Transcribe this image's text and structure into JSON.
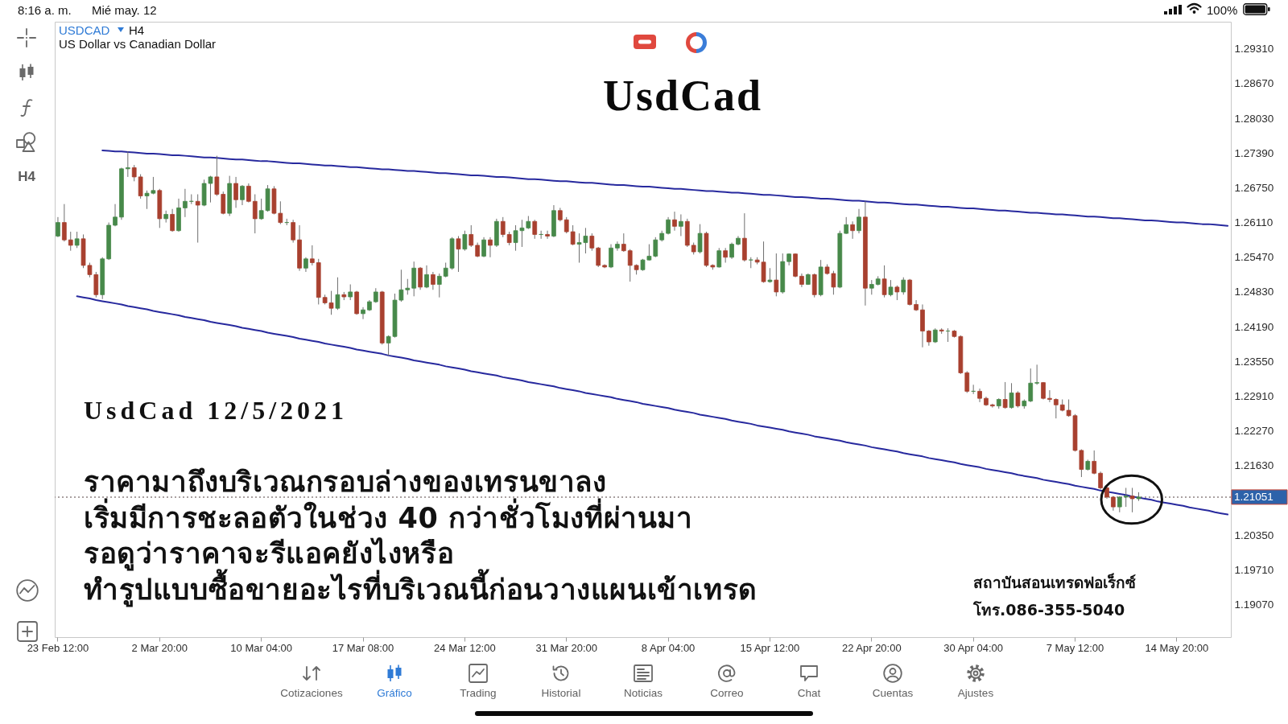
{
  "chart_data": {
    "type": "candlestick",
    "title": "UsdCad",
    "annotations": [
      "8:16 a. m.",
      "Mié may. 12",
      "100%",
      "H4",
      "USDCAD",
      "H4",
      "US Dollar vs Canadian Dollar",
      "UsdCad 12/5/2021",
      "ราคามาถึงบริเวณกรอบล่างของเทรนขาลง",
      "เริ่มมีการชะลอตัวในช่วง 40 กว่าชั่วโมงที่ผ่านมา",
      "รอดูว่าราคาจะรีแอคยังไงหรือ",
      "ทำรูปแบบซื้อขายอะไรที่บริเวณนี้ก่อนวางแผนเข้าเทรด",
      "สถาบันสอนเทรดฟอเร็กซ์",
      "โทร.086-355-5040",
      "Cotizaciones",
      "Gráfico",
      "Trading",
      "Historial",
      "Noticias",
      "Correo",
      "Chat",
      "Cuentas",
      "Ajustes"
    ],
    "categories": [
      "23 Feb 12:00",
      null,
      null,
      null,
      null,
      null,
      null,
      null,
      null,
      null,
      null,
      null,
      null,
      null,
      null,
      null,
      "2 Mar 20:00",
      null,
      null,
      null,
      null,
      null,
      null,
      null,
      null,
      null,
      null,
      null,
      null,
      null,
      null,
      null,
      "10 Mar 04:00",
      null,
      null,
      null,
      null,
      null,
      null,
      null,
      null,
      null,
      null,
      null,
      null,
      null,
      null,
      null,
      "17 Mar 08:00",
      null,
      null,
      null,
      null,
      null,
      null,
      null,
      null,
      null,
      null,
      null,
      null,
      null,
      null,
      null,
      "24 Mar 12:00",
      null,
      null,
      null,
      null,
      null,
      null,
      null,
      null,
      null,
      null,
      null,
      null,
      null,
      null,
      null,
      "31 Mar 20:00",
      null,
      null,
      null,
      null,
      null,
      null,
      null,
      null,
      null,
      null,
      null,
      null,
      null,
      null,
      null,
      "8 Apr 04:00",
      null,
      null,
      null,
      null,
      null,
      null,
      null,
      null,
      null,
      null,
      null,
      null,
      null,
      null,
      null,
      "15 Apr 12:00",
      null,
      null,
      null,
      null,
      null,
      null,
      null,
      null,
      null,
      null,
      null,
      null,
      null,
      null,
      null,
      "22 Apr 20:00",
      null,
      null,
      null,
      null,
      null,
      null,
      null,
      null,
      null,
      null,
      null,
      null,
      null,
      null,
      null,
      "30 Apr 04:00",
      null,
      null,
      null,
      null,
      null,
      null,
      null,
      null,
      null,
      null,
      null,
      null,
      null,
      null,
      null,
      "7 May 12:00",
      null,
      null,
      null,
      null,
      null,
      null,
      null,
      null,
      null,
      null,
      null,
      null,
      null,
      null,
      null,
      "14 May 20:00",
      null,
      null,
      null,
      null,
      null,
      null,
      null,
      null
    ],
    "ohlc": [
      [
        1.2586,
        1.2621,
        1.2584,
        1.2611
      ],
      [
        1.2611,
        1.2645,
        1.2576,
        1.2579
      ],
      [
        1.2579,
        1.2594,
        1.2559,
        1.2569
      ],
      [
        1.2569,
        1.2594,
        1.2564,
        1.2581
      ],
      [
        1.2581,
        1.2589,
        1.2527,
        1.2532
      ],
      [
        1.2532,
        1.2537,
        1.251,
        1.2515
      ],
      [
        1.2515,
        1.252,
        1.2473,
        1.2478
      ],
      [
        1.2478,
        1.2547,
        1.247,
        1.2544
      ],
      [
        1.2544,
        1.2611,
        1.2542,
        1.2606
      ],
      [
        1.2606,
        1.2645,
        1.2604,
        1.2621
      ],
      [
        1.2621,
        1.2712,
        1.2616,
        1.271
      ],
      [
        1.271,
        1.2742,
        1.2695,
        1.2712
      ],
      [
        1.2712,
        1.2717,
        1.2687,
        1.2695
      ],
      [
        1.2695,
        1.27,
        1.2655,
        1.266
      ],
      [
        1.266,
        1.267,
        1.2636,
        1.2665
      ],
      [
        1.2665,
        1.2695,
        1.2663,
        1.267
      ],
      [
        1.267,
        1.2673,
        1.2601,
        1.2618
      ],
      [
        1.2618,
        1.2633,
        1.2611,
        1.2626
      ],
      [
        1.2626,
        1.2636,
        1.2594,
        1.2596
      ],
      [
        1.2596,
        1.2655,
        1.2594,
        1.2638
      ],
      [
        1.2638,
        1.2673,
        1.2621,
        1.265
      ],
      [
        1.265,
        1.2663,
        1.2645,
        1.265
      ],
      [
        1.265,
        1.2663,
        1.2574,
        1.2643
      ],
      [
        1.2643,
        1.269,
        1.2641,
        1.2683
      ],
      [
        1.2683,
        1.2697,
        1.2648,
        1.2695
      ],
      [
        1.2695,
        1.2734,
        1.266,
        1.2663
      ],
      [
        1.2663,
        1.2668,
        1.2626,
        1.2628
      ],
      [
        1.2628,
        1.2697,
        1.2623,
        1.2683
      ],
      [
        1.2683,
        1.2695,
        1.2638,
        1.2653
      ],
      [
        1.2653,
        1.268,
        1.2643,
        1.2678
      ],
      [
        1.2678,
        1.2683,
        1.2648,
        1.265
      ],
      [
        1.265,
        1.2663,
        1.2591,
        1.2618
      ],
      [
        1.2618,
        1.2655,
        1.2616,
        1.2633
      ],
      [
        1.2633,
        1.268,
        1.2631,
        1.2673
      ],
      [
        1.2673,
        1.2678,
        1.2626,
        1.2628
      ],
      [
        1.2628,
        1.265,
        1.2608,
        1.2611
      ],
      [
        1.2611,
        1.2618,
        1.2606,
        1.2611
      ],
      [
        1.2611,
        1.2616,
        1.2574,
        1.2579
      ],
      [
        1.2579,
        1.2606,
        1.2522,
        1.2527
      ],
      [
        1.2527,
        1.2547,
        1.252,
        1.2544
      ],
      [
        1.2544,
        1.2569,
        1.2532,
        1.2537
      ],
      [
        1.2537,
        1.2544,
        1.246,
        1.2473
      ],
      [
        1.2473,
        1.2478,
        1.246,
        1.2463
      ],
      [
        1.2463,
        1.2485,
        1.2441,
        1.2453
      ],
      [
        1.2453,
        1.251,
        1.245,
        1.2478
      ],
      [
        1.2478,
        1.2483,
        1.2468,
        1.2474
      ],
      [
        1.2474,
        1.2497,
        1.2468,
        1.2483
      ],
      [
        1.2483,
        1.2485,
        1.2441,
        1.2443
      ],
      [
        1.2443,
        1.2455,
        1.2433,
        1.245
      ],
      [
        1.245,
        1.2468,
        1.2448,
        1.2465
      ],
      [
        1.2465,
        1.249,
        1.2463,
        1.2483
      ],
      [
        1.2483,
        1.2485,
        1.2386,
        1.2389
      ],
      [
        1.2389,
        1.2403,
        1.2366,
        1.2401
      ],
      [
        1.2401,
        1.248,
        1.2399,
        1.2468
      ],
      [
        1.2468,
        1.2524,
        1.2465,
        1.2487
      ],
      [
        1.2487,
        1.2507,
        1.2478,
        1.249
      ],
      [
        1.249,
        1.2539,
        1.2475,
        1.2527
      ],
      [
        1.2527,
        1.2529,
        1.2487,
        1.2492
      ],
      [
        1.2492,
        1.2532,
        1.249,
        1.2515
      ],
      [
        1.2515,
        1.252,
        1.2487,
        1.2497
      ],
      [
        1.2497,
        1.2517,
        1.2473,
        1.2512
      ],
      [
        1.2512,
        1.2537,
        1.251,
        1.2527
      ],
      [
        1.2527,
        1.2584,
        1.2524,
        1.2581
      ],
      [
        1.2581,
        1.2586,
        1.252,
        1.2562
      ],
      [
        1.2562,
        1.2596,
        1.2559,
        1.2589
      ],
      [
        1.2589,
        1.2606,
        1.2566,
        1.2569
      ],
      [
        1.2569,
        1.2574,
        1.2547,
        1.2549
      ],
      [
        1.2549,
        1.2584,
        1.2547,
        1.2579
      ],
      [
        1.2579,
        1.2584,
        1.2547,
        1.2569
      ],
      [
        1.2569,
        1.2618,
        1.2566,
        1.2613
      ],
      [
        1.2613,
        1.2621,
        1.2584,
        1.2589
      ],
      [
        1.2589,
        1.2594,
        1.2569,
        1.2574
      ],
      [
        1.2574,
        1.2606,
        1.2559,
        1.2596
      ],
      [
        1.2596,
        1.2616,
        1.2566,
        1.2601
      ],
      [
        1.2601,
        1.2623,
        1.2599,
        1.2613
      ],
      [
        1.2613,
        1.2616,
        1.2581,
        1.2589
      ],
      [
        1.2589,
        1.2596,
        1.2581,
        1.2589
      ],
      [
        1.2589,
        1.2596,
        1.2581,
        1.2586
      ],
      [
        1.2586,
        1.2643,
        1.2584,
        1.2633
      ],
      [
        1.2633,
        1.2638,
        1.2613,
        1.2616
      ],
      [
        1.2616,
        1.2621,
        1.2591,
        1.2594
      ],
      [
        1.2594,
        1.2606,
        1.2569,
        1.2571
      ],
      [
        1.2571,
        1.2591,
        1.2537,
        1.2574
      ],
      [
        1.2574,
        1.2601,
        1.2554,
        1.2586
      ],
      [
        1.2586,
        1.2591,
        1.2559,
        1.2564
      ],
      [
        1.2564,
        1.2566,
        1.2529,
        1.2532
      ],
      [
        1.2532,
        1.2534,
        1.2527,
        1.2529
      ],
      [
        1.2529,
        1.2571,
        1.2527,
        1.2564
      ],
      [
        1.2564,
        1.2576,
        1.2559,
        1.2571
      ],
      [
        1.2571,
        1.2591,
        1.2557,
        1.2559
      ],
      [
        1.2559,
        1.2562,
        1.2502,
        1.2532
      ],
      [
        1.2532,
        1.2534,
        1.2515,
        1.2524
      ],
      [
        1.2524,
        1.2544,
        1.2522,
        1.2542
      ],
      [
        1.2542,
        1.2571,
        1.2541,
        1.2549
      ],
      [
        1.2549,
        1.2584,
        1.2547,
        1.2579
      ],
      [
        1.2579,
        1.2596,
        1.2576,
        1.2591
      ],
      [
        1.2591,
        1.2621,
        1.2589,
        1.2616
      ],
      [
        1.2616,
        1.2631,
        1.2596,
        1.2604
      ],
      [
        1.2604,
        1.2626,
        1.2586,
        1.2613
      ],
      [
        1.2613,
        1.2618,
        1.2566,
        1.2569
      ],
      [
        1.2569,
        1.2574,
        1.2552,
        1.2557
      ],
      [
        1.2557,
        1.2608,
        1.2554,
        1.2591
      ],
      [
        1.2591,
        1.2594,
        1.2529,
        1.2532
      ],
      [
        1.2532,
        1.2534,
        1.2524,
        1.2529
      ],
      [
        1.2529,
        1.2564,
        1.2528,
        1.2559
      ],
      [
        1.2559,
        1.2564,
        1.2537,
        1.2547
      ],
      [
        1.2547,
        1.2574,
        1.2544,
        1.2571
      ],
      [
        1.2571,
        1.2586,
        1.2569,
        1.2582
      ],
      [
        1.2582,
        1.2628,
        1.2539,
        1.2542
      ],
      [
        1.2542,
        1.2547,
        1.2527,
        1.2542
      ],
      [
        1.2542,
        1.2547,
        1.2534,
        1.2538
      ],
      [
        1.2538,
        1.2576,
        1.25,
        1.2502
      ],
      [
        1.2502,
        1.2527,
        1.25,
        1.2505
      ],
      [
        1.2505,
        1.2554,
        1.2475,
        1.2483
      ],
      [
        1.2483,
        1.2554,
        1.248,
        1.2539
      ],
      [
        1.2539,
        1.2554,
        1.2532,
        1.2553
      ],
      [
        1.2553,
        1.2554,
        1.251,
        1.2512
      ],
      [
        1.2512,
        1.2517,
        1.2492,
        1.2497
      ],
      [
        1.2497,
        1.2517,
        1.2496,
        1.2515
      ],
      [
        1.2515,
        1.2517,
        1.2473,
        1.2478
      ],
      [
        1.2478,
        1.2542,
        1.2475,
        1.2529
      ],
      [
        1.2529,
        1.2534,
        1.2515,
        1.2517
      ],
      [
        1.2517,
        1.2522,
        1.2478,
        1.2492
      ],
      [
        1.2492,
        1.2596,
        1.249,
        1.2591
      ],
      [
        1.2591,
        1.2621,
        1.259,
        1.2607
      ],
      [
        1.2607,
        1.2613,
        1.2581,
        1.2596
      ],
      [
        1.2596,
        1.2636,
        1.2591,
        1.2621
      ],
      [
        1.2621,
        1.265,
        1.2458,
        1.249
      ],
      [
        1.249,
        1.2505,
        1.2478,
        1.2497
      ],
      [
        1.2497,
        1.2512,
        1.2495,
        1.2507
      ],
      [
        1.2507,
        1.2532,
        1.2473,
        1.2478
      ],
      [
        1.2478,
        1.2505,
        1.2475,
        1.2492
      ],
      [
        1.2492,
        1.2495,
        1.2468,
        1.2483
      ],
      [
        1.2483,
        1.251,
        1.2478,
        1.2505
      ],
      [
        1.2505,
        1.2507,
        1.2458,
        1.246
      ],
      [
        1.246,
        1.2468,
        1.2448,
        1.245
      ],
      [
        1.245,
        1.246,
        1.2381,
        1.2411
      ],
      [
        1.2411,
        1.2413,
        1.2384,
        1.2391
      ],
      [
        1.2391,
        1.2416,
        1.2389,
        1.2413
      ],
      [
        1.2413,
        1.2416,
        1.2406,
        1.2411
      ],
      [
        1.2411,
        1.2416,
        1.2391,
        1.2411
      ],
      [
        1.2411,
        1.2413,
        1.2399,
        1.2401
      ],
      [
        1.2401,
        1.2403,
        1.2332,
        1.2334
      ],
      [
        1.2334,
        1.2337,
        1.2297,
        1.23
      ],
      [
        1.23,
        1.2312,
        1.2295,
        1.23
      ],
      [
        1.23,
        1.2305,
        1.228,
        1.2287
      ],
      [
        1.2287,
        1.229,
        1.2273,
        1.2275
      ],
      [
        1.2275,
        1.2277,
        1.227,
        1.2273
      ],
      [
        1.2273,
        1.2287,
        1.2268,
        1.2285
      ],
      [
        1.2285,
        1.2317,
        1.2268,
        1.227
      ],
      [
        1.227,
        1.2315,
        1.2268,
        1.2297
      ],
      [
        1.2297,
        1.23,
        1.227,
        1.2273
      ],
      [
        1.2273,
        1.2285,
        1.2268,
        1.2282
      ],
      [
        1.2282,
        1.2342,
        1.228,
        1.2315
      ],
      [
        1.2315,
        1.2349,
        1.2312,
        1.2316
      ],
      [
        1.2316,
        1.2317,
        1.2285,
        1.2287
      ],
      [
        1.2287,
        1.2302,
        1.228,
        1.2285
      ],
      [
        1.2285,
        1.2287,
        1.225,
        1.2275
      ],
      [
        1.2275,
        1.2285,
        1.2263,
        1.2265
      ],
      [
        1.2265,
        1.2285,
        1.2253,
        1.2255
      ],
      [
        1.2255,
        1.2258,
        1.2189,
        1.2191
      ],
      [
        1.2191,
        1.2193,
        1.2142,
        1.2156
      ],
      [
        1.2156,
        1.2174,
        1.2154,
        1.2171
      ],
      [
        1.2171,
        1.2191,
        1.2147,
        1.2149
      ],
      [
        1.2149,
        1.2152,
        1.2119,
        1.2122
      ],
      [
        1.2122,
        1.2124,
        1.2102,
        1.2105
      ],
      [
        1.2105,
        1.2107,
        1.208,
        1.2087
      ],
      [
        1.2087,
        1.2107,
        1.2077,
        1.2105
      ],
      [
        1.2105,
        1.2122,
        1.2087,
        1.2107
      ],
      [
        1.2107,
        1.2122,
        1.2077,
        1.2102
      ],
      [
        1.2102,
        1.2114,
        1.2098,
        1.21051
      ],
      null,
      null,
      null,
      null,
      null,
      null,
      null,
      null,
      null,
      null,
      null,
      null,
      null,
      null
    ],
    "colors": [
      "#47894a",
      "#a8402f",
      "#a8402f",
      "#47894a",
      "#a8402f",
      "#a8402f",
      "#a8402f",
      "#47894a",
      "#47894a",
      "#47894a",
      "#47894a",
      "#47894a",
      "#a8402f",
      "#a8402f",
      "#47894a",
      "#47894a",
      "#a8402f",
      "#47894a",
      "#a8402f",
      "#47894a",
      "#47894a",
      "#47894a",
      "#a8402f",
      "#47894a",
      "#47894a",
      "#a8402f",
      "#a8402f",
      "#47894a",
      "#a8402f",
      "#47894a",
      "#a8402f",
      "#a8402f",
      "#47894a",
      "#47894a",
      "#a8402f",
      "#a8402f",
      "#47894a",
      "#a8402f",
      "#a8402f",
      "#47894a",
      "#a8402f",
      "#a8402f",
      "#a8402f",
      "#a8402f",
      "#47894a",
      "#a8402f",
      "#47894a",
      "#a8402f",
      "#47894a",
      "#47894a",
      "#47894a",
      "#a8402f",
      "#47894a",
      "#47894a",
      "#47894a",
      "#47894a",
      "#47894a",
      "#a8402f",
      "#47894a",
      "#a8402f",
      "#47894a",
      "#47894a",
      "#47894a",
      "#a8402f",
      "#47894a",
      "#a8402f",
      "#a8402f",
      "#47894a",
      "#a8402f",
      "#47894a",
      "#a8402f",
      "#a8402f",
      "#47894a",
      "#47894a",
      "#47894a",
      "#a8402f",
      "#47894a",
      "#a8402f",
      "#47894a",
      "#a8402f",
      "#a8402f",
      "#a8402f",
      "#47894a",
      "#47894a",
      "#a8402f",
      "#a8402f",
      "#a8402f",
      "#47894a",
      "#47894a",
      "#a8402f",
      "#a8402f",
      "#a8402f",
      "#47894a",
      "#47894a",
      "#47894a",
      "#47894a",
      "#47894a",
      "#a8402f",
      "#47894a",
      "#a8402f",
      "#a8402f",
      "#47894a",
      "#a8402f",
      "#a8402f",
      "#47894a",
      "#a8402f",
      "#47894a",
      "#47894a",
      "#a8402f",
      "#47894a",
      "#a8402f",
      "#a8402f",
      "#47894a",
      "#a8402f",
      "#47894a",
      "#47894a",
      "#a8402f",
      "#a8402f",
      "#47894a",
      "#a8402f",
      "#47894a",
      "#a8402f",
      "#a8402f",
      "#47894a",
      "#47894a",
      "#a8402f",
      "#47894a",
      "#a8402f",
      "#47894a",
      "#47894a",
      "#a8402f",
      "#47894a",
      "#a8402f",
      "#47894a",
      "#a8402f",
      "#a8402f",
      "#a8402f",
      "#a8402f",
      "#47894a",
      "#a8402f",
      "#47894a",
      "#a8402f",
      "#a8402f",
      "#a8402f",
      "#47894a",
      "#a8402f",
      "#a8402f",
      "#a8402f",
      "#47894a",
      "#a8402f",
      "#47894a",
      "#a8402f",
      "#47894a",
      "#47894a",
      "#47894a",
      "#a8402f",
      "#a8402f",
      "#a8402f",
      "#a8402f",
      "#a8402f",
      "#a8402f",
      "#a8402f",
      "#47894a",
      "#a8402f",
      "#a8402f",
      "#a8402f",
      "#a8402f",
      "#47894a",
      "#47894a",
      "#a8402f",
      "#47894a",
      null,
      null,
      null,
      null,
      null,
      null,
      null,
      null,
      null,
      null,
      null,
      null,
      null,
      null
    ],
    "series": [
      {
        "type": "line",
        "color": "#27299e",
        "values": [
          null,
          null,
          null,
          null,
          null,
          null,
          null,
          1.2744,
          1.2743,
          1.2742,
          1.2742,
          1.2741,
          1.274,
          1.2739,
          1.2738,
          1.2738,
          1.2737,
          1.2736,
          1.2735,
          1.2735,
          1.2734,
          1.2733,
          1.2732,
          1.2731,
          1.2731,
          1.273,
          1.2729,
          1.2728,
          1.2727,
          1.2727,
          1.2726,
          1.2725,
          1.2724,
          1.2724,
          1.2723,
          1.2722,
          1.2721,
          1.272,
          1.272,
          1.2719,
          1.2718,
          1.2717,
          1.2716,
          1.2716,
          1.2715,
          1.2714,
          1.2713,
          1.2713,
          1.2712,
          1.2711,
          1.271,
          1.2709,
          1.2709,
          1.2708,
          1.2707,
          1.2706,
          1.2706,
          1.2705,
          1.2704,
          1.2703,
          1.2702,
          1.2702,
          1.2701,
          1.27,
          1.2699,
          1.2698,
          1.2698,
          1.2697,
          1.2696,
          1.2695,
          1.2695,
          1.2694,
          1.2693,
          1.2692,
          1.2691,
          1.2691,
          1.269,
          1.2689,
          1.2688,
          1.2687,
          1.2687,
          1.2686,
          1.2685,
          1.2684,
          1.2684,
          1.2683,
          1.2682,
          1.2681,
          1.268,
          1.268,
          1.2679,
          1.2678,
          1.2677,
          1.2677,
          1.2676,
          1.2675,
          1.2674,
          1.2673,
          1.2673,
          1.2672,
          1.2671,
          1.267,
          1.2669,
          1.2669,
          1.2668,
          1.2667,
          1.2666,
          1.2666,
          1.2665,
          1.2664,
          1.2663,
          1.2662,
          1.2662,
          1.2661,
          1.266,
          1.2659,
          1.2658,
          1.2658,
          1.2657,
          1.2656,
          1.2655,
          1.2655,
          1.2654,
          1.2653,
          1.2652,
          1.2651,
          1.2651,
          1.265,
          1.2649,
          1.2648,
          1.2648,
          1.2647,
          1.2646,
          1.2645,
          1.2644,
          1.2644,
          1.2643,
          1.2642,
          1.2641,
          1.264,
          1.264,
          1.2639,
          1.2638,
          1.2637,
          1.2637,
          1.2636,
          1.2635,
          1.2634,
          1.2633,
          1.2633,
          1.2632,
          1.2631,
          1.263,
          1.2629,
          1.2629,
          1.2628,
          1.2627,
          1.2626,
          1.2626,
          1.2625,
          1.2624,
          1.2623,
          1.2622,
          1.2622,
          1.2621,
          1.262,
          1.2619,
          1.2619,
          1.2618,
          1.2617,
          1.2616,
          1.2615,
          1.2615,
          1.2614,
          1.2613,
          1.2612,
          1.2611,
          1.2611,
          1.261,
          1.2609,
          1.2608,
          1.2608,
          1.2607,
          1.2606,
          1.2605
        ]
      },
      {
        "type": "line",
        "color": "#27299e",
        "values": [
          null,
          null,
          null,
          1.2475,
          1.2473,
          1.2471,
          1.2468,
          1.2466,
          1.2464,
          1.2462,
          1.246,
          1.2457,
          1.2455,
          1.2453,
          1.2451,
          1.2448,
          1.2446,
          1.2444,
          1.2442,
          1.244,
          1.2437,
          1.2435,
          1.2433,
          1.2431,
          1.2428,
          1.2426,
          1.2424,
          1.2422,
          1.242,
          1.2417,
          1.2415,
          1.2413,
          1.2411,
          1.2408,
          1.2406,
          1.2404,
          1.2402,
          1.24,
          1.2397,
          1.2395,
          1.2393,
          1.2391,
          1.2388,
          1.2386,
          1.2384,
          1.2382,
          1.238,
          1.2377,
          1.2375,
          1.2373,
          1.2371,
          1.2369,
          1.2366,
          1.2364,
          1.2362,
          1.236,
          1.2357,
          1.2355,
          1.2353,
          1.2351,
          1.2349,
          1.2346,
          1.2344,
          1.2342,
          1.234,
          1.2337,
          1.2335,
          1.2333,
          1.2331,
          1.2329,
          1.2326,
          1.2324,
          1.2322,
          1.232,
          1.2317,
          1.2315,
          1.2313,
          1.2311,
          1.2309,
          1.2306,
          1.2304,
          1.2302,
          1.23,
          1.2297,
          1.2295,
          1.2293,
          1.2291,
          1.2289,
          1.2286,
          1.2284,
          1.2282,
          1.228,
          1.2277,
          1.2275,
          1.2273,
          1.2271,
          1.2269,
          1.2266,
          1.2264,
          1.2262,
          1.226,
          1.2257,
          1.2255,
          1.2253,
          1.2251,
          1.2249,
          1.2246,
          1.2244,
          1.2242,
          1.224,
          1.2237,
          1.2235,
          1.2233,
          1.2231,
          1.2229,
          1.2226,
          1.2224,
          1.2222,
          1.222,
          1.2217,
          1.2215,
          1.2213,
          1.2211,
          1.2209,
          1.2206,
          1.2204,
          1.2202,
          1.22,
          1.2197,
          1.2195,
          1.2193,
          1.2191,
          1.2189,
          1.2186,
          1.2184,
          1.2182,
          1.218,
          1.2177,
          1.2175,
          1.2173,
          1.2171,
          1.2169,
          1.2166,
          1.2164,
          1.2162,
          1.216,
          1.2157,
          1.2155,
          1.2153,
          1.2151,
          1.2149,
          1.2146,
          1.2144,
          1.2142,
          1.214,
          1.2137,
          1.2135,
          1.2133,
          1.2131,
          1.2129,
          1.2126,
          1.2124,
          1.2122,
          1.212,
          1.2117,
          1.2115,
          1.2113,
          1.2111,
          1.2109,
          1.2106,
          1.2104,
          1.2102,
          1.21,
          1.2097,
          1.2095,
          1.2093,
          1.2091,
          1.2089,
          1.2086,
          1.2084,
          1.2082,
          1.208,
          1.2077,
          1.2075,
          1.2073
        ]
      }
    ],
    "ylim": [
      1.1847,
      1.2981
    ],
    "yticks": [
      {
        "value": 1.1907,
        "label": "1.19070"
      },
      {
        "value": 1.1971,
        "label": "1.19710"
      },
      {
        "value": 1.2035,
        "label": "1.20350"
      },
      {
        "value": 1.2163,
        "label": "1.21630"
      },
      {
        "value": 1.2227,
        "label": "1.22270"
      },
      {
        "value": 1.2291,
        "label": "1.22910"
      },
      {
        "value": 1.2355,
        "label": "1.23550"
      },
      {
        "value": 1.2419,
        "label": "1.24190"
      },
      {
        "value": 1.2483,
        "label": "1.24830"
      },
      {
        "value": 1.2547,
        "label": "1.25470"
      },
      {
        "value": 1.2611,
        "label": "1.26110"
      },
      {
        "value": 1.2675,
        "label": "1.26750"
      },
      {
        "value": 1.2739,
        "label": "1.27390"
      },
      {
        "value": 1.2803,
        "label": "1.28030"
      },
      {
        "value": 1.2867,
        "label": "1.28670"
      },
      {
        "value": 1.2931,
        "label": "1.29310"
      }
    ],
    "ref_lines": [
      {
        "axis": "y",
        "value": 1.21051,
        "label": "1.21051",
        "color": "#8f8282",
        "line_style": "dotted"
      }
    ]
  }
}
